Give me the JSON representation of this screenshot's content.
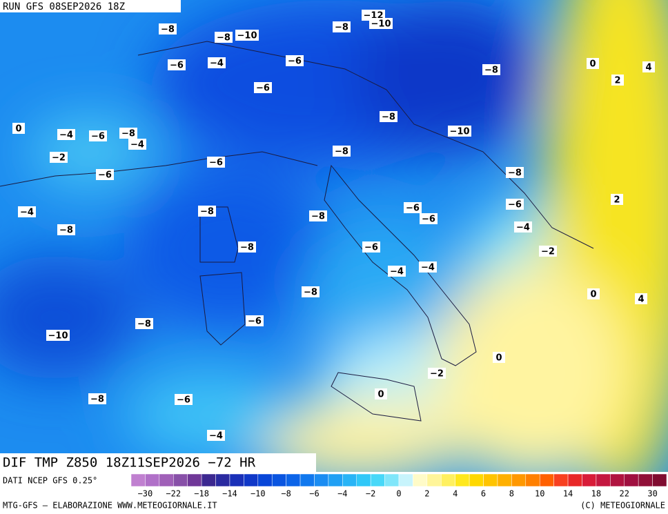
{
  "header": {
    "run": "RUN GFS 08SEP2026 18Z"
  },
  "contour_labels": [
    "−12",
    "−10",
    "−8",
    "−8",
    "−10",
    "−8",
    "−6",
    "−4",
    "−6",
    "−8",
    "0",
    "4",
    "2",
    "−6",
    "0",
    "−4",
    "−6",
    "−8",
    "−4",
    "−8",
    "−10",
    "−2",
    "−8",
    "−6",
    "−6",
    "−8",
    "2",
    "−4",
    "−8",
    "−6",
    "−6",
    "−8",
    "−8",
    "−6",
    "−4",
    "−8",
    "−6",
    "−2",
    "−4",
    "−4",
    "−8",
    "0",
    "4",
    "−8",
    "−6",
    "−10",
    "0",
    "−2",
    "0",
    "−8",
    "−6",
    "−4"
  ],
  "footer": {
    "title": "DIF TMP Z850 18Z11SEP2026 −72 HR",
    "source": "DATI NCEP GFS 0.25°",
    "credit_left": "MTG-GFS — ELABORAZIONE WWW.METEOGIORNALE.IT",
    "credit_right": "(C) METEOGIORNALE"
  },
  "colorbar": {
    "colors": [
      "#c080d0",
      "#b070c8",
      "#a060b8",
      "#8850a8",
      "#703898",
      "#3c2890",
      "#2a2aa0",
      "#1a30b8",
      "#1038c8",
      "#0846d8",
      "#0a55e0",
      "#0c64e8",
      "#1078ee",
      "#1a8cf2",
      "#20a0f4",
      "#28b4f6",
      "#30c8f8",
      "#48d8f8",
      "#80e6fa",
      "#c8f4fc",
      "#fffbc8",
      "#fff59a",
      "#fff060",
      "#ffe81e",
      "#ffd800",
      "#ffc400",
      "#ffb000",
      "#ff9800",
      "#ff8000",
      "#ff6000",
      "#f84020",
      "#e82828",
      "#d81c38",
      "#c41840",
      "#b01440",
      "#a01040",
      "#901038",
      "#800c30"
    ],
    "labels": [
      "−30",
      "−22",
      "−18",
      "−14",
      "−10",
      "−8",
      "−6",
      "−4",
      "−2",
      "0",
      "2",
      "4",
      "6",
      "8",
      "10",
      "14",
      "18",
      "22",
      "30"
    ]
  }
}
